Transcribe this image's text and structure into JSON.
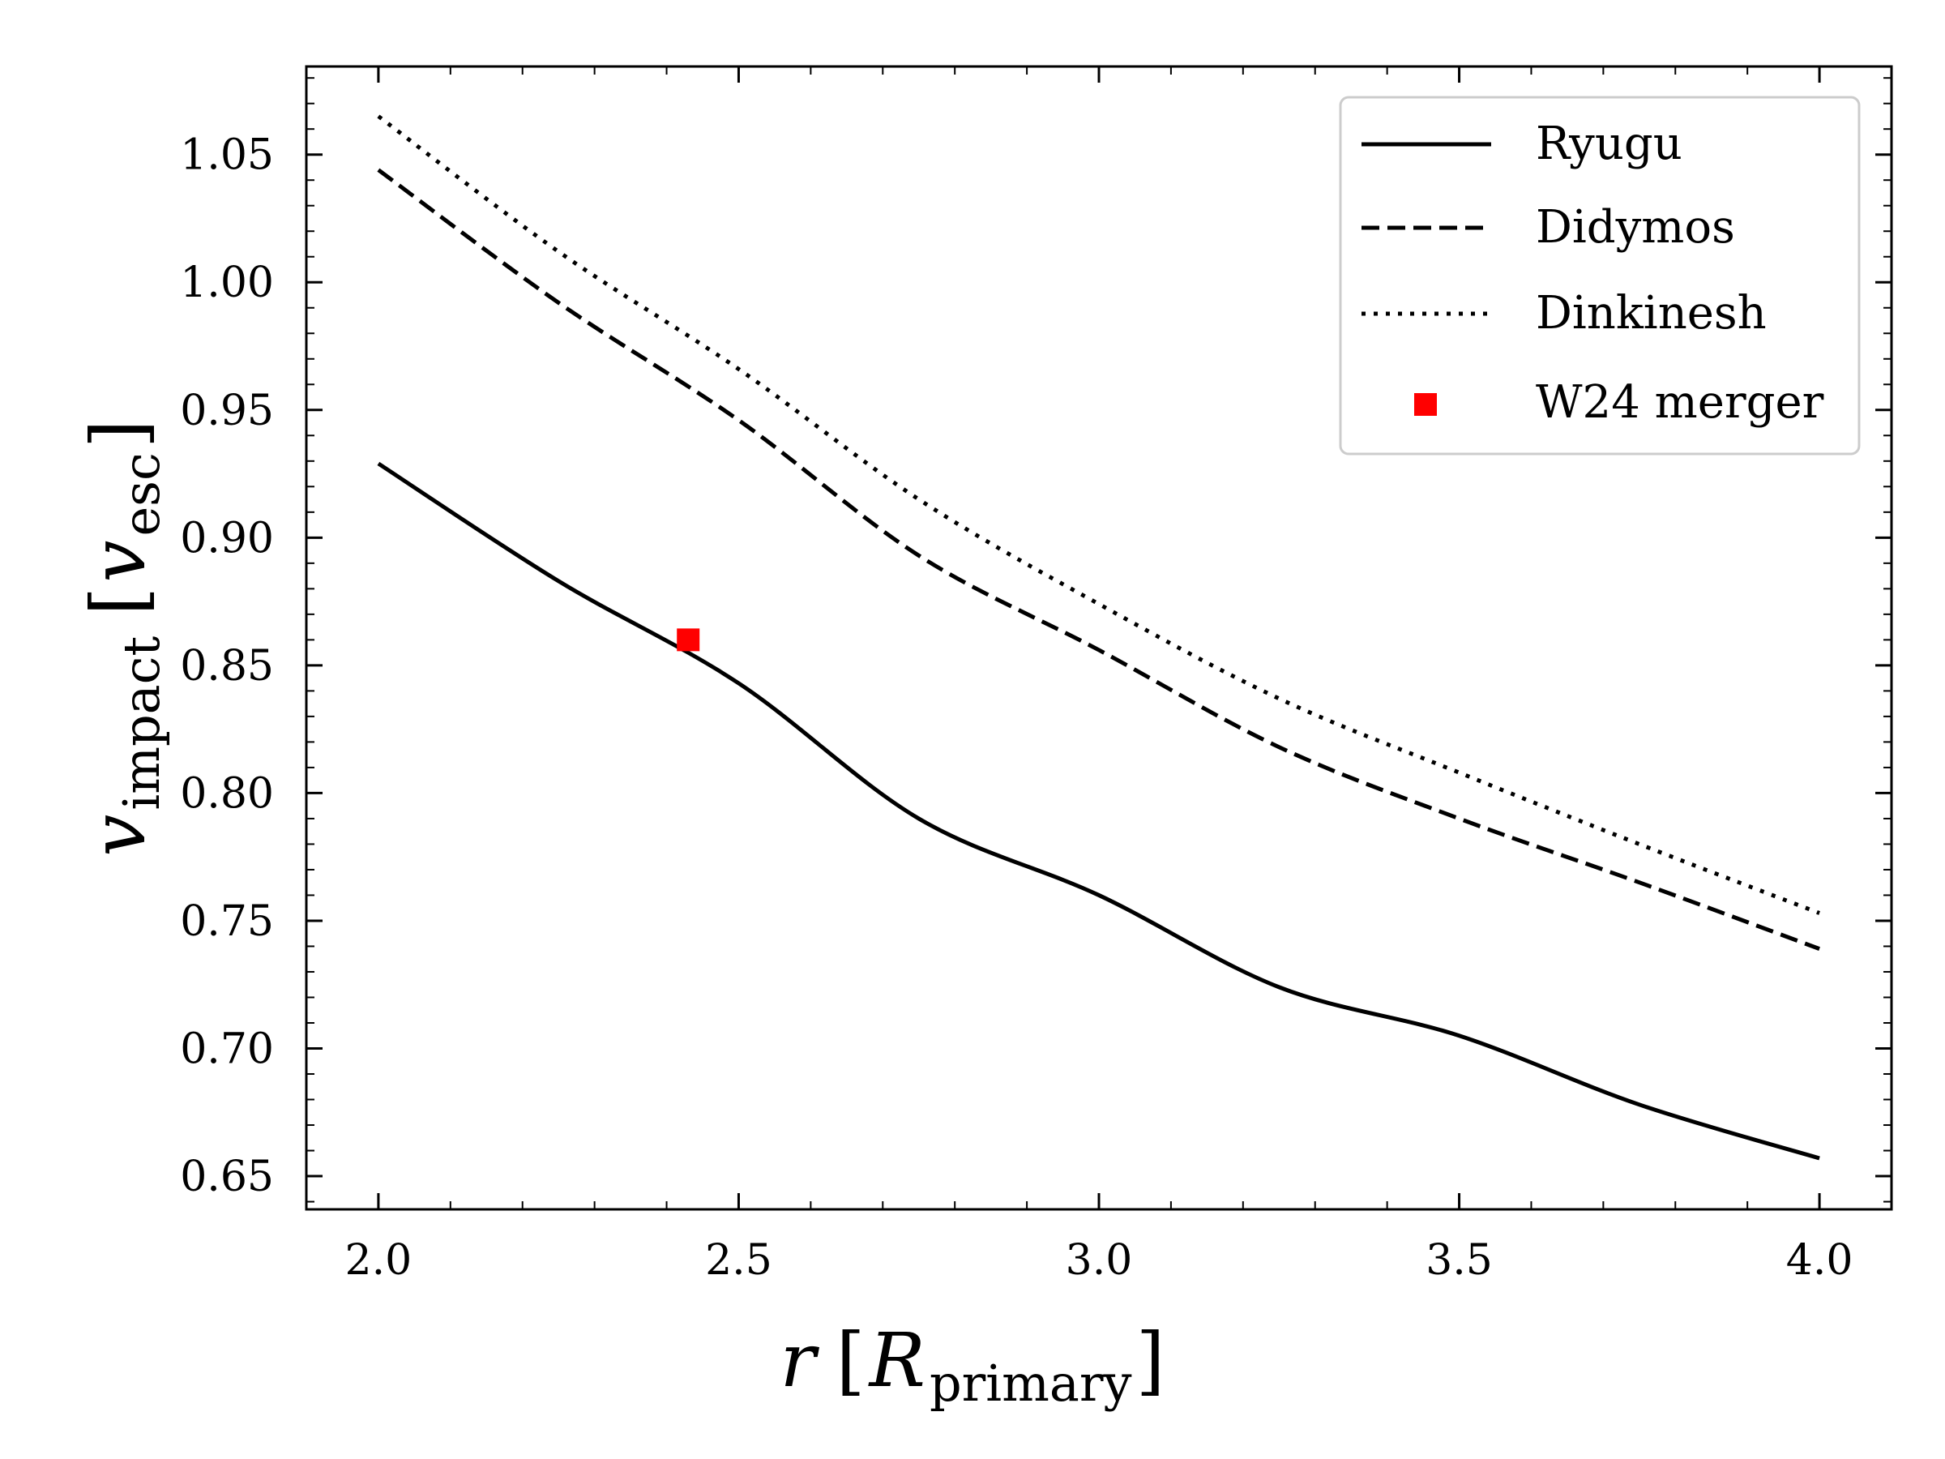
{
  "chart_data": {
    "type": "line",
    "title": "",
    "xlabel": {
      "main": "r",
      "bracket_open": "[",
      "symbol": "R",
      "subscript": "primary",
      "bracket_close": "]"
    },
    "ylabel": {
      "main": "v",
      "subscript": "impact",
      "bracket_open": "[",
      "unit_symbol": "v",
      "unit_subscript": "esc",
      "bracket_close": "]"
    },
    "xlim": [
      1.9,
      4.1
    ],
    "ylim": [
      0.637,
      1.0845
    ],
    "xticks": [
      2.0,
      2.5,
      3.0,
      3.5,
      4.0
    ],
    "xtick_labels": [
      "2.0",
      "2.5",
      "3.0",
      "3.5",
      "4.0"
    ],
    "yticks": [
      0.65,
      0.7,
      0.75,
      0.8,
      0.85,
      0.9,
      0.95,
      1.0,
      1.05
    ],
    "ytick_labels": [
      "0.65",
      "0.70",
      "0.75",
      "0.80",
      "0.85",
      "0.90",
      "0.95",
      "1.00",
      "1.05"
    ],
    "grid": false,
    "legend_position": "top-right",
    "x": [
      2.0,
      2.25,
      2.5,
      2.75,
      3.0,
      3.25,
      3.5,
      3.75,
      4.0
    ],
    "series": [
      {
        "name": "Ryugu",
        "style": "solid",
        "values": [
          0.929,
          0.883,
          0.843,
          0.79,
          0.76,
          0.724,
          0.705,
          0.678,
          0.657
        ]
      },
      {
        "name": "Didymos",
        "style": "dashed",
        "values": [
          1.044,
          0.992,
          0.946,
          0.893,
          0.856,
          0.818,
          0.79,
          0.765,
          0.739
        ]
      },
      {
        "name": "Dinkinesh",
        "style": "dotted",
        "values": [
          1.065,
          1.012,
          0.966,
          0.915,
          0.874,
          0.837,
          0.808,
          0.78,
          0.753
        ]
      }
    ],
    "points": [
      {
        "name": "W24 merger",
        "x": 2.43,
        "y": 0.86,
        "color": "#ff0000",
        "marker": "square"
      }
    ]
  }
}
